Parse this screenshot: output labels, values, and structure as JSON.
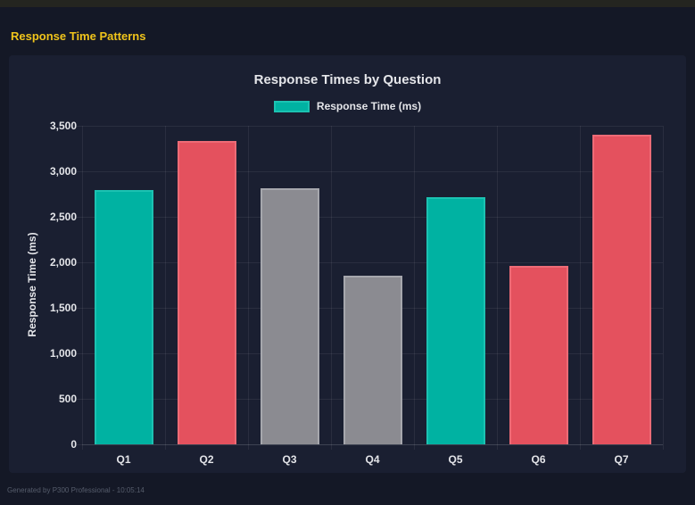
{
  "page": {
    "header_title": "Response Time Patterns",
    "footer": "Generated by P300 Professional - 10:05:14"
  },
  "colors": {
    "page_bg": "#141826",
    "top_strip": "#242520",
    "panel_bg": "#1a1f31",
    "header_yellow": "#f0c41b",
    "text_light": "#e4e5e9",
    "grid": "rgba(255,255,255,0.07)",
    "footer_text": "#565d6c",
    "teal": "#00b2a2",
    "red": "#e4515e",
    "gray": "#8b8b91"
  },
  "chart_data": {
    "type": "bar",
    "title": "Response Times by Question",
    "legend": [
      {
        "label": "Response Time (ms)",
        "color": "#00b2a2",
        "border": "#1cc2b2"
      }
    ],
    "legend_position": "top",
    "categories": [
      "Q1",
      "Q2",
      "Q3",
      "Q4",
      "Q5",
      "Q6",
      "Q7"
    ],
    "values": [
      2790,
      3330,
      2810,
      1850,
      2720,
      1960,
      3400
    ],
    "bar_colors": [
      "#00b2a2",
      "#e4515e",
      "#8b8b91",
      "#8b8b91",
      "#00b2a2",
      "#e4515e",
      "#e4515e"
    ],
    "bar_border_colors": [
      "#1cc2b2",
      "#ed6b76",
      "#a6a7ad",
      "#a6a7ad",
      "#1cc2b2",
      "#ed6b76",
      "#ed6b76"
    ],
    "xlabel": "",
    "ylabel": "Response Time (ms)",
    "ylim": [
      0,
      3500
    ],
    "ytick_step": 500,
    "ytick_labels": [
      "0",
      "500",
      "1,000",
      "1,500",
      "2,000",
      "2,500",
      "3,000",
      "3,500"
    ],
    "grid": true
  }
}
